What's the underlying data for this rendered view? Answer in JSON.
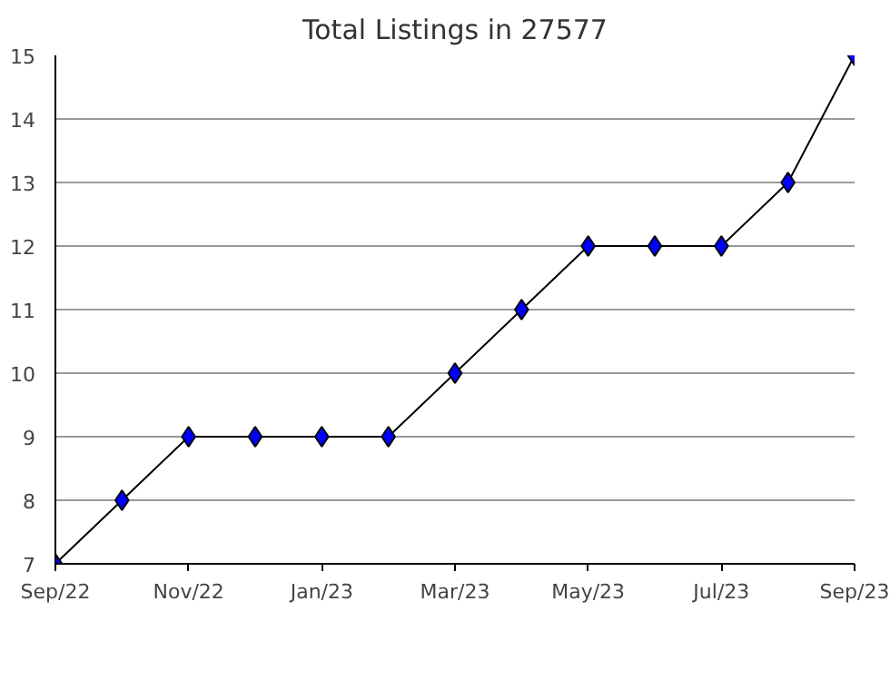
{
  "chart_data": {
    "type": "line",
    "title": "Total Listings in 27577",
    "x": [
      "2022-09",
      "2022-10",
      "2022-11",
      "2022-12",
      "2023-01",
      "2023-02",
      "2023-03",
      "2023-04",
      "2023-05",
      "2023-06",
      "2023-07",
      "2023-08",
      "2023-09"
    ],
    "series": [
      {
        "color": "#0000ff",
        "values": [
          7,
          8,
          9,
          9,
          9,
          9,
          10,
          11,
          12,
          12,
          12,
          13,
          15
        ]
      }
    ],
    "xlim": [
      "2022-09",
      "2023-09"
    ],
    "xticks": [
      {
        "value": "2022-09",
        "label": "Sep/22"
      },
      {
        "value": "2022-11",
        "label": "Nov/22"
      },
      {
        "value": "2023-01",
        "label": "Jan/23"
      },
      {
        "value": "2023-03",
        "label": "Mar/23"
      },
      {
        "value": "2023-05",
        "label": "May/23"
      },
      {
        "value": "2023-07",
        "label": "Jul/23"
      },
      {
        "value": "2023-09",
        "label": "Sep/23"
      }
    ],
    "ylim": [
      7,
      15
    ],
    "yticks": [
      7,
      8,
      9,
      10,
      11,
      12,
      13,
      14,
      15
    ],
    "grid": "y",
    "marker": "diamond",
    "line_style": "solid"
  }
}
